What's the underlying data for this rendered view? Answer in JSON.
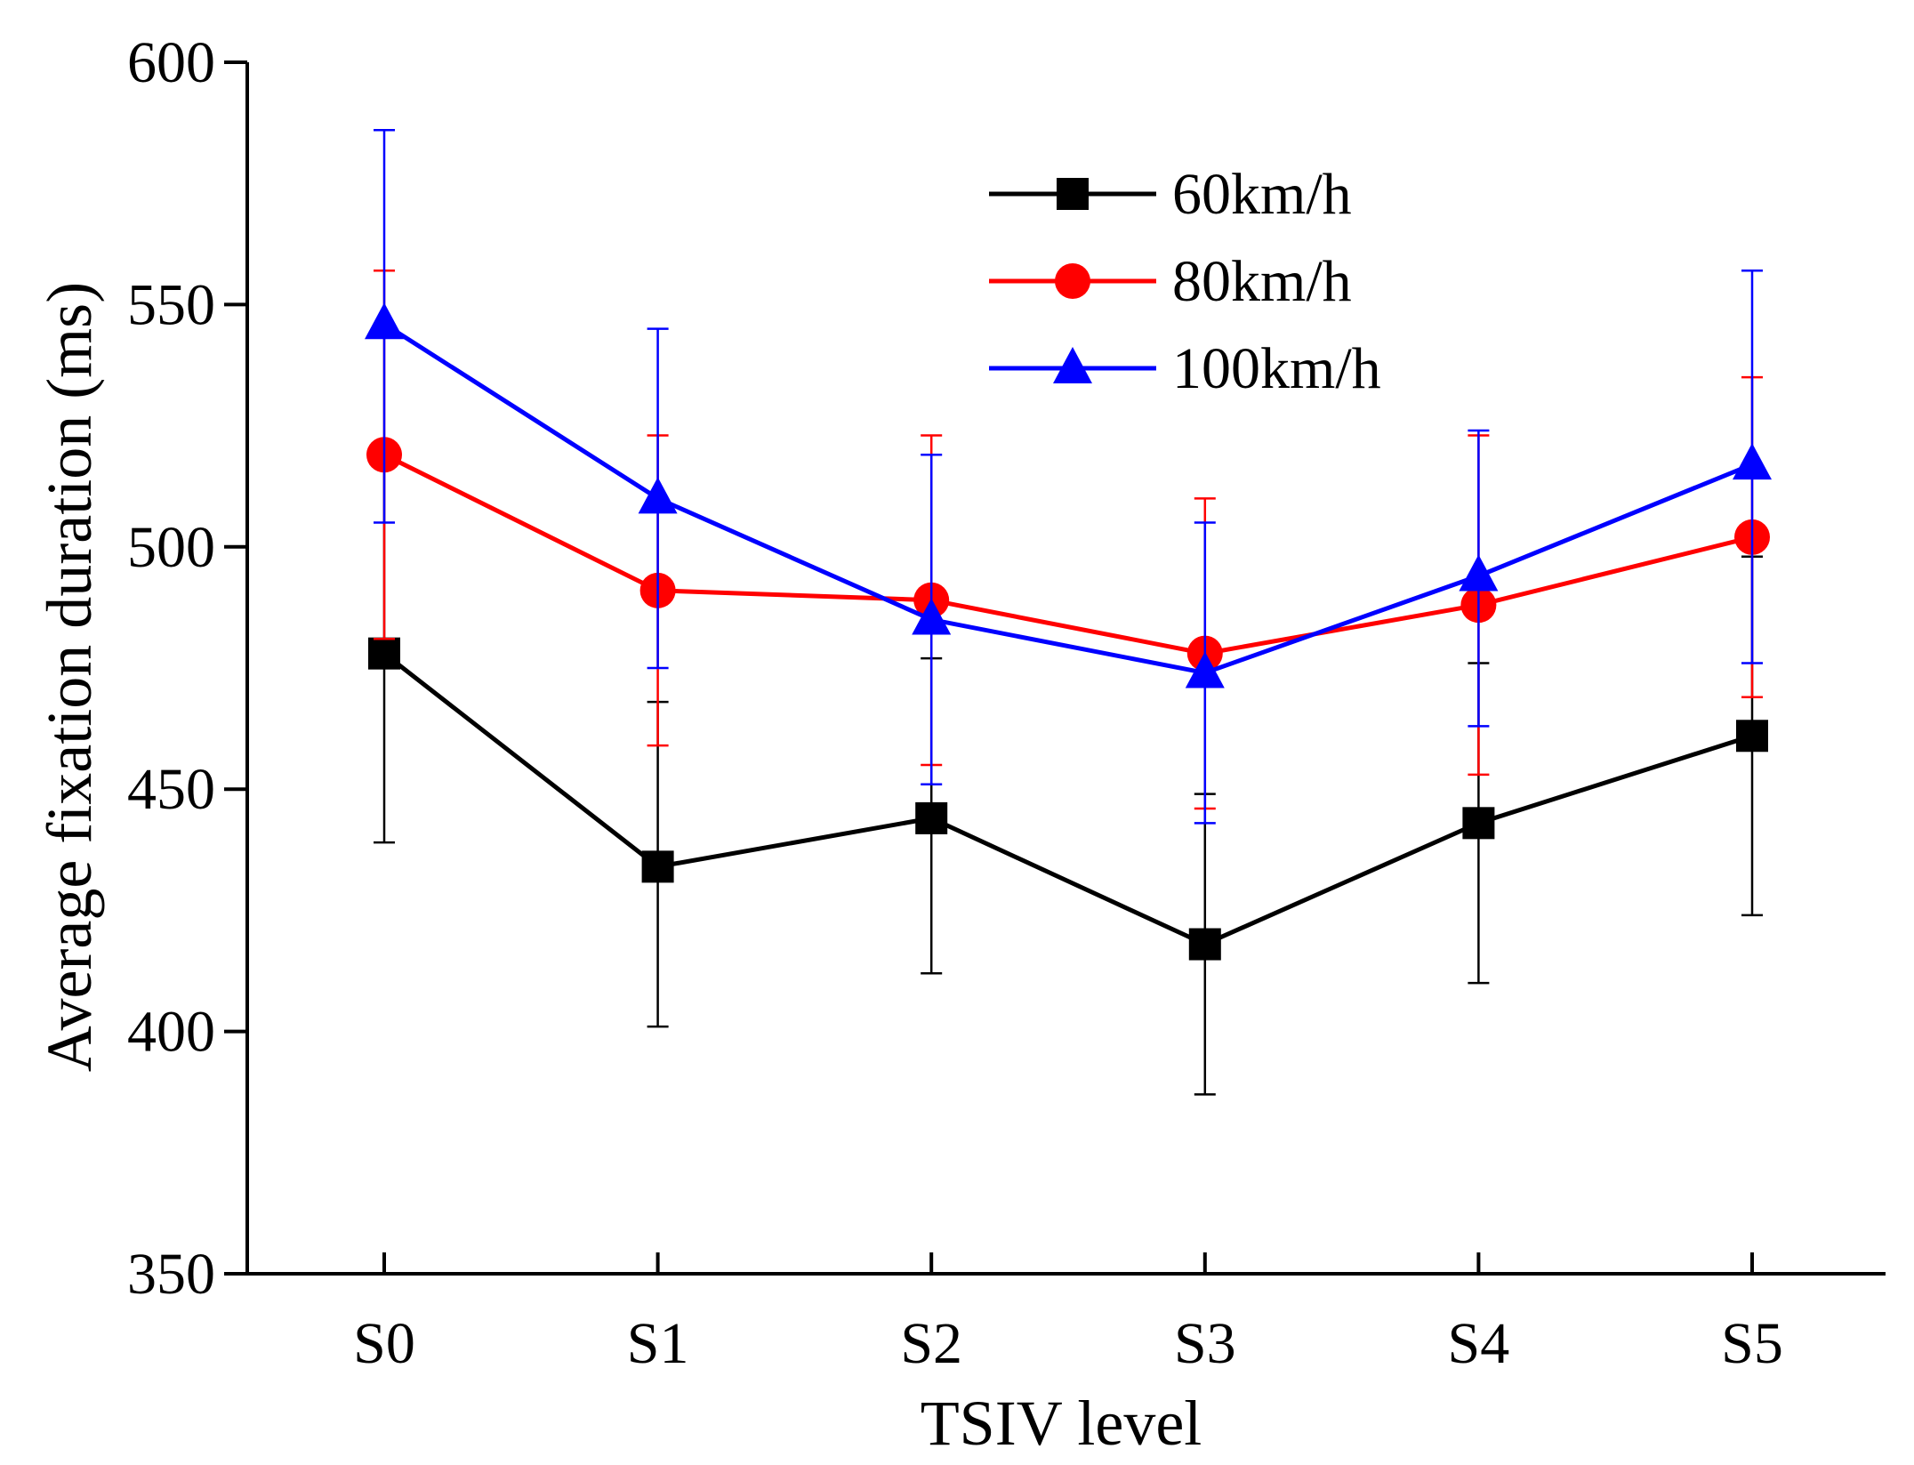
{
  "chart_data": {
    "type": "line",
    "title": "",
    "xlabel": "TSIV level",
    "ylabel": "Average fixation duration (ms)",
    "categories": [
      "S0",
      "S1",
      "S2",
      "S3",
      "S4",
      "S5"
    ],
    "ylim": [
      350,
      600
    ],
    "yticks": [
      350,
      400,
      450,
      500,
      550,
      600
    ],
    "legend_position": "top-right",
    "series": [
      {
        "name": "60km/h",
        "color": "#000000",
        "marker": "square",
        "values": [
          478,
          434,
          444,
          418,
          443,
          461
        ],
        "err_low": [
          439,
          401,
          412,
          387,
          410,
          424
        ],
        "err_high": [
          518,
          468,
          477,
          449,
          476,
          498
        ]
      },
      {
        "name": "80km/h",
        "color": "#ff0000",
        "marker": "circle",
        "values": [
          519,
          491,
          489,
          478,
          488,
          502
        ],
        "err_low": [
          481,
          459,
          455,
          446,
          453,
          469
        ],
        "err_high": [
          557,
          523,
          523,
          510,
          523,
          535
        ]
      },
      {
        "name": "100km/h",
        "color": "#0000ff",
        "marker": "triangle",
        "values": [
          546,
          510,
          485,
          474,
          494,
          517
        ],
        "err_low": [
          505,
          475,
          451,
          443,
          463,
          476
        ],
        "err_high": [
          586,
          545,
          519,
          505,
          524,
          557
        ]
      }
    ]
  }
}
